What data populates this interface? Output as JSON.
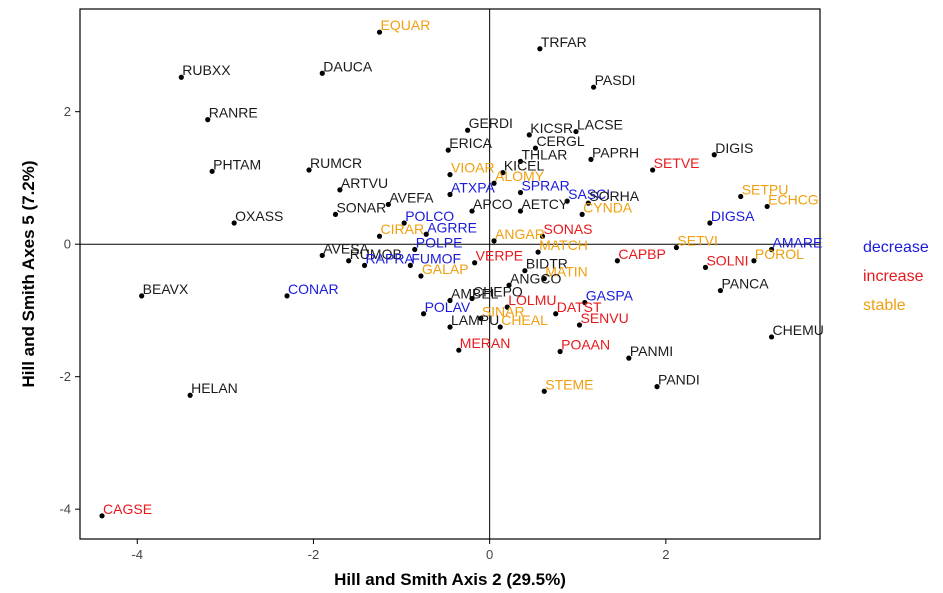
{
  "chart_data": {
    "type": "scatter",
    "title": "",
    "xlabel": "Hill  and Smith Axis 2 (29.5%)",
    "ylabel": "Hill  and Smith Axes 5 (7.2%)",
    "xlim": [
      -4.65,
      3.75
    ],
    "ylim": [
      -4.45,
      3.55
    ],
    "xticks": [
      -4,
      -2,
      0,
      2
    ],
    "yticks": [
      -4,
      -2,
      0,
      2
    ],
    "grid": false,
    "reference_lines": {
      "x": 0,
      "y": 0
    },
    "legend_position": "right",
    "categories": {
      "decrease": "#1a1adb",
      "increase": "#e8191c",
      "stable": "#f0a010",
      "none": "#1a1a1a"
    },
    "legend": [
      {
        "key": "decrease",
        "label": "decrease"
      },
      {
        "key": "increase",
        "label": "increase"
      },
      {
        "key": "stable",
        "label": "stable"
      }
    ],
    "points": [
      {
        "label": "EQUAR",
        "x": -1.25,
        "y": 3.2,
        "group": "stable"
      },
      {
        "label": "TRFAR",
        "x": 0.57,
        "y": 2.95,
        "group": "none"
      },
      {
        "label": "RUBXX",
        "x": -3.5,
        "y": 2.52,
        "group": "none"
      },
      {
        "label": "DAUCA",
        "x": -1.9,
        "y": 2.58,
        "group": "none"
      },
      {
        "label": "PASDI",
        "x": 1.18,
        "y": 2.37,
        "group": "none"
      },
      {
        "label": "RANRE",
        "x": -3.2,
        "y": 1.88,
        "group": "none"
      },
      {
        "label": "GERDI",
        "x": -0.25,
        "y": 1.72,
        "group": "none"
      },
      {
        "label": "KICSR",
        "x": 0.45,
        "y": 1.65,
        "group": "none"
      },
      {
        "label": "LACSE",
        "x": 0.98,
        "y": 1.7,
        "group": "none"
      },
      {
        "label": "ERICA",
        "x": -0.47,
        "y": 1.42,
        "group": "none"
      },
      {
        "label": "CERGL",
        "x": 0.52,
        "y": 1.45,
        "group": "none"
      },
      {
        "label": "PAPRH",
        "x": 1.15,
        "y": 1.28,
        "group": "none"
      },
      {
        "label": "DIGIS",
        "x": 2.55,
        "y": 1.35,
        "group": "none"
      },
      {
        "label": "THLAR",
        "x": 0.35,
        "y": 1.25,
        "group": "none"
      },
      {
        "label": "PHTAM",
        "x": -3.15,
        "y": 1.1,
        "group": "none"
      },
      {
        "label": "RUMCR",
        "x": -2.05,
        "y": 1.12,
        "group": "none"
      },
      {
        "label": "SETVE",
        "x": 1.85,
        "y": 1.12,
        "group": "increase"
      },
      {
        "label": "KICEL",
        "x": 0.15,
        "y": 1.08,
        "group": "none"
      },
      {
        "label": "VIOAR",
        "x": -0.45,
        "y": 1.05,
        "group": "stable"
      },
      {
        "label": "ALOMY",
        "x": 0.05,
        "y": 0.92,
        "group": "stable"
      },
      {
        "label": "ARTVU",
        "x": -1.7,
        "y": 0.82,
        "group": "none"
      },
      {
        "label": "SETPU",
        "x": 2.85,
        "y": 0.72,
        "group": "stable"
      },
      {
        "label": "ATXPA",
        "x": -0.45,
        "y": 0.75,
        "group": "decrease"
      },
      {
        "label": "SPRAR",
        "x": 0.35,
        "y": 0.78,
        "group": "decrease"
      },
      {
        "label": "SASCI",
        "x": 0.88,
        "y": 0.65,
        "group": "decrease"
      },
      {
        "label": "SORHA",
        "x": 1.12,
        "y": 0.62,
        "group": "none"
      },
      {
        "label": "ECHCG",
        "x": 3.15,
        "y": 0.57,
        "group": "stable"
      },
      {
        "label": "AVEFA",
        "x": -1.15,
        "y": 0.6,
        "group": "none"
      },
      {
        "label": "OXASS",
        "x": -2.9,
        "y": 0.32,
        "group": "none"
      },
      {
        "label": "SONAR",
        "x": -1.75,
        "y": 0.45,
        "group": "none"
      },
      {
        "label": "APCO",
        "x": -0.2,
        "y": 0.5,
        "group": "none"
      },
      {
        "label": "AETCY",
        "x": 0.35,
        "y": 0.5,
        "group": "none"
      },
      {
        "label": "CYNDA",
        "x": 1.05,
        "y": 0.45,
        "group": "stable"
      },
      {
        "label": "POLCO",
        "x": -0.97,
        "y": 0.32,
        "group": "decrease"
      },
      {
        "label": "DIGSA",
        "x": 2.5,
        "y": 0.32,
        "group": "decrease"
      },
      {
        "label": "AGRRE",
        "x": -0.72,
        "y": 0.15,
        "group": "decrease"
      },
      {
        "label": "CIRAR",
        "x": -1.25,
        "y": 0.12,
        "group": "stable"
      },
      {
        "label": "SONAS",
        "x": 0.6,
        "y": 0.12,
        "group": "increase"
      },
      {
        "label": "ANGAR",
        "x": 0.05,
        "y": 0.05,
        "group": "stable"
      },
      {
        "label": "AMARE",
        "x": 3.2,
        "y": -0.08,
        "group": "decrease"
      },
      {
        "label": "SETVI",
        "x": 2.12,
        "y": -0.05,
        "group": "stable"
      },
      {
        "label": "POLPE",
        "x": -0.85,
        "y": -0.08,
        "group": "decrease"
      },
      {
        "label": "AVESA",
        "x": -1.9,
        "y": -0.17,
        "group": "none"
      },
      {
        "label": "RUMOB",
        "x": -1.6,
        "y": -0.25,
        "group": "none"
      },
      {
        "label": "MATCH",
        "x": 0.55,
        "y": -0.12,
        "group": "stable"
      },
      {
        "label": "POROL",
        "x": 3.0,
        "y": -0.25,
        "group": "stable"
      },
      {
        "label": "CAPBP",
        "x": 1.45,
        "y": -0.25,
        "group": "increase"
      },
      {
        "label": "FUMOF",
        "x": -0.9,
        "y": -0.32,
        "group": "decrease"
      },
      {
        "label": "VERPE",
        "x": -0.17,
        "y": -0.28,
        "group": "increase"
      },
      {
        "label": "SOLNI",
        "x": 2.45,
        "y": -0.35,
        "group": "increase"
      },
      {
        "label": "BIDTR",
        "x": 0.4,
        "y": -0.4,
        "group": "none"
      },
      {
        "label": "RAPRA",
        "x": -1.42,
        "y": -0.32,
        "group": "decrease"
      },
      {
        "label": "GALAP",
        "x": -0.78,
        "y": -0.48,
        "group": "stable"
      },
      {
        "label": "MATIN",
        "x": 0.62,
        "y": -0.52,
        "group": "stable"
      },
      {
        "label": "ANGCO",
        "x": 0.22,
        "y": -0.62,
        "group": "none"
      },
      {
        "label": "PANCA",
        "x": 2.62,
        "y": -0.7,
        "group": "none"
      },
      {
        "label": "CONAR",
        "x": -2.3,
        "y": -0.78,
        "group": "decrease"
      },
      {
        "label": "BEAVX",
        "x": -3.95,
        "y": -0.78,
        "group": "none"
      },
      {
        "label": "AMBEL",
        "x": -0.45,
        "y": -0.85,
        "group": "none"
      },
      {
        "label": "CHEPO",
        "x": -0.2,
        "y": -0.82,
        "group": "none"
      },
      {
        "label": "GASPA",
        "x": 1.08,
        "y": -0.88,
        "group": "decrease"
      },
      {
        "label": "LOLMU",
        "x": 0.2,
        "y": -0.95,
        "group": "increase"
      },
      {
        "label": "DATST",
        "x": 0.75,
        "y": -1.05,
        "group": "increase"
      },
      {
        "label": "POLAV",
        "x": -0.75,
        "y": -1.05,
        "group": "decrease"
      },
      {
        "label": "SINAR",
        "x": -0.1,
        "y": -1.12,
        "group": "stable"
      },
      {
        "label": "SENVU",
        "x": 1.02,
        "y": -1.22,
        "group": "increase"
      },
      {
        "label": "LAMPU",
        "x": -0.45,
        "y": -1.25,
        "group": "none"
      },
      {
        "label": "CHEAL",
        "x": 0.12,
        "y": -1.25,
        "group": "stable"
      },
      {
        "label": "CHEMU",
        "x": 3.2,
        "y": -1.4,
        "group": "none"
      },
      {
        "label": "MERAN",
        "x": -0.35,
        "y": -1.6,
        "group": "increase"
      },
      {
        "label": "POAAN",
        "x": 0.8,
        "y": -1.62,
        "group": "increase"
      },
      {
        "label": "PANMI",
        "x": 1.58,
        "y": -1.72,
        "group": "none"
      },
      {
        "label": "PANDI",
        "x": 1.9,
        "y": -2.15,
        "group": "none"
      },
      {
        "label": "STEME",
        "x": 0.62,
        "y": -2.22,
        "group": "stable"
      },
      {
        "label": "HELAN",
        "x": -3.4,
        "y": -2.28,
        "group": "none"
      },
      {
        "label": "CAGSE",
        "x": -4.4,
        "y": -4.1,
        "group": "increase"
      }
    ]
  }
}
